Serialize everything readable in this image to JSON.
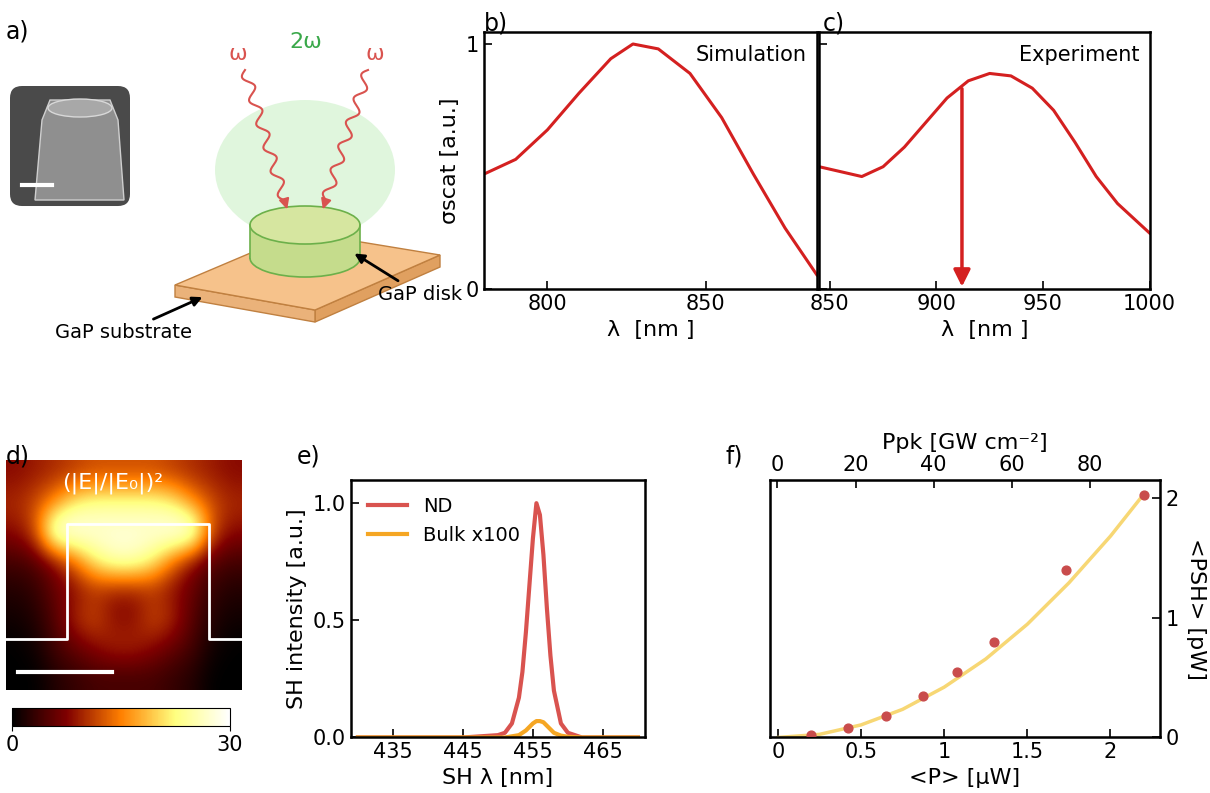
{
  "diagram": {
    "panel_label": "a)",
    "omega": "ω",
    "second_harmonic": "2ω",
    "disk": "GaP disk",
    "substrate": "GaP substrate"
  },
  "chart_data": [
    {
      "panel_label": "b)",
      "type": "line",
      "annotation": "Simulation",
      "xlabel": "λ  [nm ]",
      "ylabel": "σscat [a.u.]",
      "x": [
        780,
        790,
        800,
        810,
        820,
        827,
        835,
        845,
        855,
        865,
        875,
        885
      ],
      "values": [
        0.47,
        0.53,
        0.65,
        0.8,
        0.94,
        1.0,
        0.98,
        0.88,
        0.7,
        0.47,
        0.25,
        0.06
      ],
      "color": "#d42020",
      "xlim": [
        780,
        885
      ],
      "ylim": [
        0,
        1.05
      ],
      "xticks": [
        800,
        850
      ],
      "yticks": [
        0,
        1
      ]
    },
    {
      "panel_label": "c)",
      "type": "line",
      "annotation": "Experiment",
      "xlabel": "λ  [nm ]",
      "arrow_x": 912,
      "x": [
        845,
        855,
        865,
        875,
        885,
        895,
        905,
        915,
        925,
        935,
        945,
        955,
        965,
        975,
        985,
        1000
      ],
      "values": [
        0.5,
        0.48,
        0.46,
        0.5,
        0.58,
        0.68,
        0.78,
        0.85,
        0.88,
        0.87,
        0.82,
        0.73,
        0.6,
        0.46,
        0.35,
        0.23
      ],
      "color": "#d42020",
      "xlim": [
        845,
        1000
      ],
      "ylim": [
        0,
        1.05
      ],
      "xticks": [
        850,
        900,
        950,
        1000
      ],
      "yticks": [
        0,
        1
      ],
      "tick_labels": "x"
    },
    {
      "panel_label": "d)",
      "type": "heatmap",
      "cells": [
        [
          8,
          9,
          10,
          11,
          12,
          12,
          12,
          12,
          11,
          10,
          9,
          8
        ],
        [
          10,
          12,
          16,
          22,
          24,
          24,
          24,
          24,
          22,
          16,
          12,
          10
        ],
        [
          8,
          12,
          30,
          30,
          28,
          28,
          28,
          28,
          30,
          30,
          12,
          8
        ],
        [
          4,
          5,
          8,
          14,
          22,
          26,
          26,
          22,
          14,
          8,
          5,
          4
        ],
        [
          2,
          3,
          6,
          8,
          10,
          9,
          9,
          10,
          8,
          6,
          3,
          2
        ],
        [
          1,
          2,
          5,
          10,
          12,
          8,
          8,
          12,
          10,
          5,
          2,
          1
        ],
        [
          0,
          1,
          4,
          6,
          8,
          10,
          10,
          8,
          6,
          4,
          1,
          0
        ],
        [
          0,
          0,
          2,
          3,
          4,
          4,
          4,
          4,
          3,
          2,
          0,
          0
        ]
      ],
      "colorbar": {
        "range": [
          0,
          30
        ],
        "ticks": [
          0,
          30
        ],
        "label": "(|E|/|E₀|)²"
      }
    },
    {
      "panel_label": "e)",
      "type": "line",
      "xlabel": "SH λ [nm]",
      "ylabel": "SH intensity [a.u.]",
      "x": [
        430,
        445,
        450,
        451,
        452,
        453,
        453.5,
        454,
        454.5,
        455,
        455.5,
        456,
        456.5,
        457,
        457.5,
        458,
        459,
        460,
        462,
        470
      ],
      "series": [
        {
          "name": "ND",
          "color": "#d9534f",
          "values": [
            0,
            0,
            0.01,
            0.02,
            0.06,
            0.17,
            0.28,
            0.45,
            0.65,
            0.85,
            1.0,
            0.95,
            0.78,
            0.55,
            0.35,
            0.2,
            0.06,
            0.02,
            0,
            0
          ]
        },
        {
          "name": "Bulk x100",
          "color": "#f5a623",
          "values": [
            0,
            0,
            0,
            0,
            0.005,
            0.01,
            0.02,
            0.03,
            0.045,
            0.06,
            0.07,
            0.07,
            0.065,
            0.05,
            0.035,
            0.02,
            0.008,
            0.003,
            0,
            0
          ]
        }
      ],
      "legend": "upper left",
      "xlim": [
        429,
        471
      ],
      "ylim": [
        0,
        1.1
      ],
      "xticks": [
        435,
        445,
        455,
        465
      ],
      "yticks": [
        {
          "value": 0,
          "label": "0.0"
        },
        {
          "value": 0.5,
          "label": "0.5"
        },
        {
          "value": 1,
          "label": "1.0"
        }
      ]
    },
    {
      "panel_label": "f)",
      "type": "scatter",
      "xlabel": "<P> [μW]",
      "x2label": "Ppk [GW cm⁻²]",
      "ylabel": "<PSH> [pW]",
      "series": [
        {
          "type": "line",
          "color": "#f7d774",
          "x": [
            0,
            0.25,
            0.5,
            0.75,
            1.0,
            1.25,
            1.5,
            1.75,
            2.0,
            2.2
          ],
          "values": [
            0,
            0.026,
            0.105,
            0.235,
            0.42,
            0.655,
            0.945,
            1.29,
            1.68,
            2.03
          ]
        },
        {
          "type": "scatter",
          "marker": "o",
          "color": "#c94c4c",
          "x": [
            0.2,
            0.42,
            0.65,
            0.87,
            1.08,
            1.3,
            1.73,
            2.2
          ],
          "values": [
            0.02,
            0.08,
            0.18,
            0.35,
            0.55,
            0.8,
            1.4,
            2.02
          ]
        }
      ],
      "xlim": [
        -0.05,
        2.3
      ],
      "xticks": [
        0,
        0.5,
        1,
        1.5,
        2
      ],
      "x2lim": [
        -2,
        98
      ],
      "x2ticks": [
        0,
        20,
        40,
        60,
        80
      ],
      "ylim": [
        0,
        2.15
      ],
      "yticks": [
        0,
        1,
        2
      ]
    }
  ]
}
